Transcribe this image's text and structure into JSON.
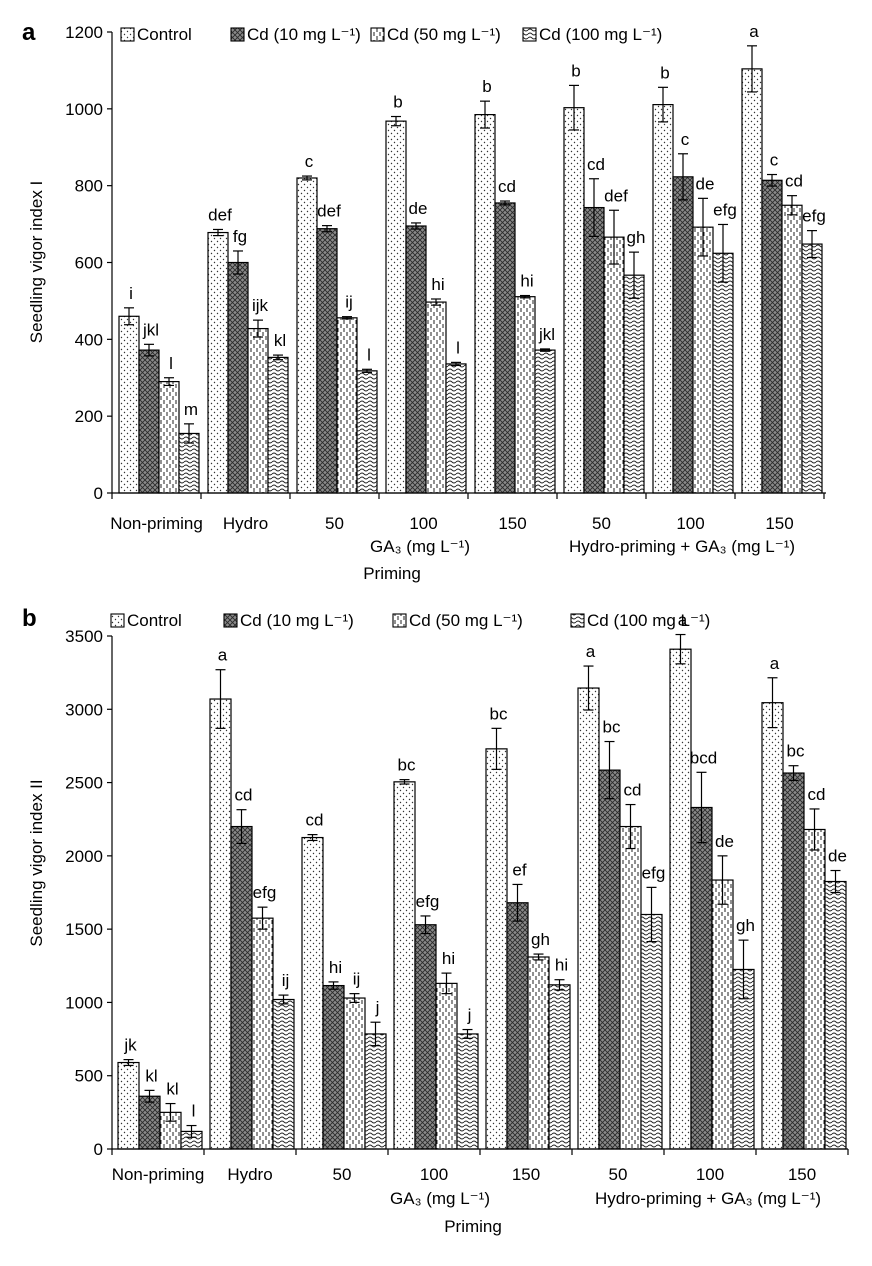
{
  "chart_data": [
    {
      "panel_label": "a",
      "type": "bar",
      "ylabel": "Seedling vigor index I",
      "xlabel": "Priming",
      "ylim": [
        0,
        1200
      ],
      "yticks": [
        0,
        200,
        400,
        600,
        800,
        1000,
        1200
      ],
      "categories": [
        "Non-priming",
        "Hydro",
        "50",
        "100",
        "150",
        "50",
        "100",
        "150"
      ],
      "group_labels": [
        "GA₃ (mg L⁻¹)",
        "Hydro-priming + GA₃ (mg L⁻¹)"
      ],
      "legend": {
        "placement": "top",
        "entries": [
          "Control",
          "Cd (10 mg L⁻¹)",
          "Cd (50 mg L⁻¹)",
          "Cd (100 mg L⁻¹)"
        ]
      },
      "series": [
        {
          "name": "Control",
          "values": [
            460,
            678,
            820,
            968,
            985,
            1003,
            1011,
            1104
          ],
          "errors": [
            22,
            8,
            5,
            12,
            35,
            58,
            45,
            60
          ],
          "letters": [
            "i",
            "def",
            "c",
            "b",
            "b",
            "b",
            "b",
            "a"
          ]
        },
        {
          "name": "Cd (10 mg L⁻¹)",
          "values": [
            372,
            600,
            688,
            695,
            755,
            743,
            823,
            814
          ],
          "errors": [
            15,
            30,
            8,
            8,
            5,
            75,
            60,
            15
          ],
          "letters": [
            "jkl",
            "fg",
            "def",
            "de",
            "cd",
            "cd",
            "c",
            "c"
          ]
        },
        {
          "name": "Cd (50 mg L⁻¹)",
          "values": [
            290,
            428,
            456,
            497,
            511,
            666,
            692,
            749
          ],
          "errors": [
            10,
            22,
            3,
            8,
            3,
            70,
            75,
            25
          ],
          "letters": [
            "l",
            "ijk",
            "ij",
            "hi",
            "hi",
            "def",
            "de",
            "cd"
          ]
        },
        {
          "name": "Cd (100 mg L⁻¹)",
          "values": [
            155,
            353,
            318,
            336,
            372,
            567,
            624,
            648
          ],
          "errors": [
            25,
            6,
            4,
            4,
            3,
            60,
            75,
            35
          ],
          "letters": [
            "m",
            "kl",
            "l",
            "l",
            "jkl",
            "gh",
            "efg",
            "efg"
          ]
        }
      ]
    },
    {
      "panel_label": "b",
      "type": "bar",
      "ylabel": "Seedling vigor index II",
      "xlabel": "Priming",
      "ylim": [
        0,
        3500
      ],
      "yticks": [
        0,
        500,
        1000,
        1500,
        2000,
        2500,
        3000,
        3500
      ],
      "categories": [
        "Non-priming",
        "Hydro",
        "50",
        "100",
        "150",
        "50",
        "100",
        "150"
      ],
      "group_labels": [
        "GA₃ (mg L⁻¹)",
        "Hydro-priming + GA₃ (mg L⁻¹)"
      ],
      "legend": {
        "placement": "top",
        "entries": [
          "Control",
          "Cd (10 mg L⁻¹)",
          "Cd (50 mg L⁻¹)",
          "Cd (100 mg L⁻¹)"
        ]
      },
      "series": [
        {
          "name": "Control",
          "values": [
            590,
            3070,
            2125,
            2505,
            2730,
            3145,
            3410,
            3045
          ],
          "errors": [
            20,
            200,
            20,
            15,
            140,
            150,
            100,
            170
          ],
          "letters": [
            "jk",
            "a",
            "cd",
            "bc",
            "bc",
            "a",
            "a",
            "a"
          ]
        },
        {
          "name": "Cd (10 mg L⁻¹)",
          "values": [
            360,
            2200,
            1115,
            1530,
            1680,
            2585,
            2330,
            2565
          ],
          "errors": [
            40,
            115,
            25,
            60,
            125,
            195,
            240,
            50
          ],
          "letters": [
            "kl",
            "cd",
            "hi",
            "efg",
            "ef",
            "bc",
            "bcd",
            "bc"
          ]
        },
        {
          "name": "Cd (50 mg L⁻¹)",
          "values": [
            250,
            1575,
            1030,
            1130,
            1310,
            2200,
            1835,
            2180
          ],
          "errors": [
            60,
            75,
            30,
            70,
            20,
            150,
            165,
            140
          ],
          "letters": [
            "kl",
            "efg",
            "ij",
            "hi",
            "gh",
            "cd",
            "de",
            "cd"
          ]
        },
        {
          "name": "Cd (100 mg L⁻¹)",
          "values": [
            120,
            1020,
            785,
            785,
            1120,
            1600,
            1225,
            1825
          ],
          "errors": [
            40,
            30,
            80,
            30,
            35,
            185,
            200,
            75
          ],
          "letters": [
            "l",
            "ij",
            "j",
            "j",
            "hi",
            "efg",
            "gh",
            "de"
          ]
        }
      ]
    }
  ]
}
